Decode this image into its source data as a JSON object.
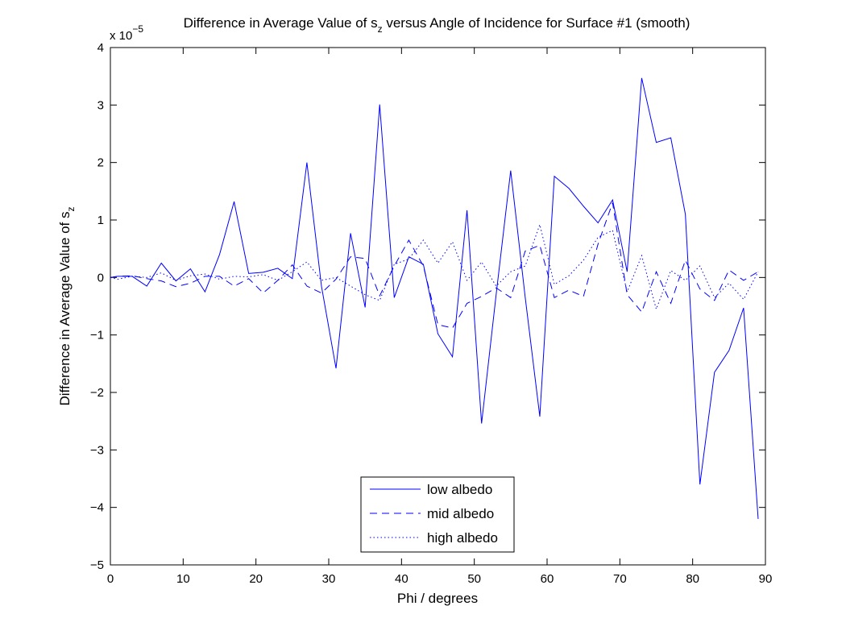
{
  "chart_data": {
    "type": "line",
    "title_main": "Difference in Average Value of s",
    "title_sub": "z",
    "title_tail": " versus Angle of Incidence for Surface #1 (smooth)",
    "xlabel": "Phi / degrees",
    "ylabel_main": "Difference in Average Value of s",
    "ylabel_sub": "z",
    "y_exponent_prefix": "x 10",
    "y_exponent": "−5",
    "xlim": [
      0,
      90
    ],
    "ylim": [
      -5,
      4
    ],
    "x_ticks": [
      0,
      10,
      20,
      30,
      40,
      50,
      60,
      70,
      80,
      90
    ],
    "x_tick_labels": [
      "0",
      "10",
      "20",
      "30",
      "40",
      "50",
      "60",
      "70",
      "80",
      "90"
    ],
    "y_ticks": [
      -5,
      -4,
      -3,
      -2,
      -1,
      0,
      1,
      2,
      3,
      4
    ],
    "y_tick_labels": [
      "−5",
      "−4",
      "−3",
      "−2",
      "−1",
      "0",
      "1",
      "2",
      "3",
      "4"
    ],
    "grid": false,
    "legend_position": "bottom-center",
    "line_color": "#0000ff",
    "x": [
      0,
      1,
      3,
      5,
      7,
      9,
      11,
      13,
      15,
      17,
      19,
      21,
      23,
      25,
      27,
      29,
      31,
      33,
      35,
      37,
      39,
      41,
      43,
      45,
      47,
      49,
      51,
      53,
      55,
      57,
      59,
      61,
      63,
      65,
      67,
      69,
      71,
      73,
      75,
      77,
      79,
      81,
      83,
      85,
      87,
      89
    ],
    "series": [
      {
        "name": "low albedo",
        "style": "solid",
        "values": [
          0.0,
          0.02,
          0.02,
          -0.15,
          0.25,
          -0.06,
          0.15,
          -0.25,
          0.4,
          1.32,
          0.07,
          0.09,
          0.16,
          -0.02,
          2.0,
          -0.15,
          -1.58,
          0.77,
          -0.52,
          3.01,
          -0.35,
          0.36,
          0.23,
          -0.98,
          -1.38,
          1.17,
          -2.54,
          -0.3,
          1.86,
          -0.35,
          -2.42,
          1.76,
          1.55,
          1.24,
          0.95,
          1.35,
          0.1,
          3.47,
          2.35,
          2.43,
          1.1,
          -3.6,
          -1.65,
          -1.27,
          -0.53,
          -4.2
        ]
      },
      {
        "name": "mid albedo",
        "style": "dashed",
        "values": [
          0.0,
          0.02,
          0.03,
          -0.02,
          -0.06,
          -0.16,
          -0.1,
          0.02,
          0.02,
          -0.15,
          -0.02,
          -0.27,
          -0.05,
          0.22,
          -0.15,
          -0.27,
          -0.03,
          0.36,
          0.33,
          -0.32,
          0.2,
          0.65,
          0.2,
          -0.82,
          -0.88,
          -0.45,
          -0.33,
          -0.18,
          -0.35,
          0.46,
          0.56,
          -0.35,
          -0.22,
          -0.33,
          0.58,
          1.3,
          -0.3,
          -0.6,
          0.1,
          -0.45,
          0.3,
          -0.2,
          -0.4,
          0.13,
          -0.05,
          0.1
        ]
      },
      {
        "name": "high albedo",
        "style": "dotted",
        "values": [
          0.0,
          -0.03,
          0.02,
          0.0,
          0.08,
          -0.05,
          0.03,
          0.06,
          -0.03,
          0.02,
          0.01,
          0.05,
          -0.05,
          0.1,
          0.27,
          -0.05,
          0.0,
          -0.15,
          -0.3,
          -0.4,
          0.23,
          0.32,
          0.65,
          0.25,
          0.62,
          -0.05,
          0.27,
          -0.15,
          0.1,
          0.2,
          0.92,
          -0.12,
          0.03,
          0.3,
          0.7,
          0.82,
          -0.25,
          0.38,
          -0.55,
          0.12,
          -0.05,
          0.2,
          -0.35,
          -0.1,
          -0.38,
          0.1
        ]
      }
    ]
  }
}
